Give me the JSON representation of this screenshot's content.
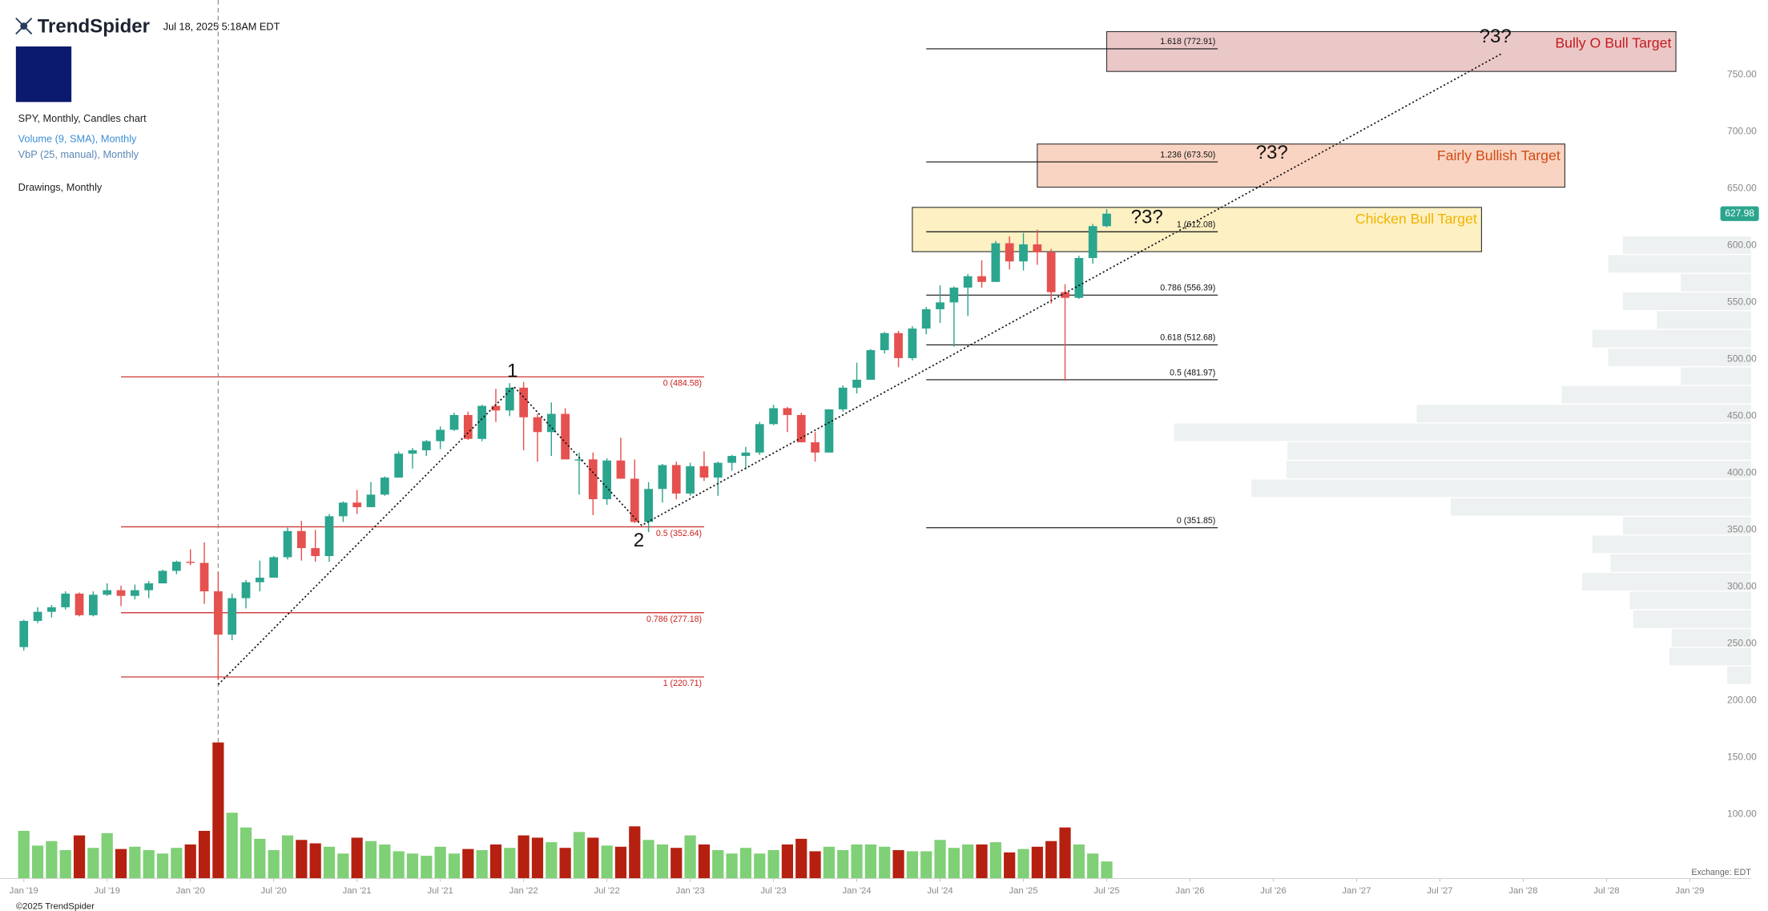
{
  "header": {
    "brand": "TrendSpider",
    "timestamp": "Jul 18, 2025 5:18AM EDT"
  },
  "legend": {
    "main": "SPY, Monthly, Candles chart",
    "volume": "Volume (9, SMA), Monthly",
    "vbp": "VbP (25, manual), Monthly",
    "drawings": "Drawings, Monthly"
  },
  "footer": {
    "copyright": "©2025 TrendSpider",
    "exchange": "Exchange: EDT"
  },
  "chart_data": {
    "type": "candlestick",
    "colors": {
      "up": "#2ba58e",
      "down": "#e5514f",
      "volume_up": "#7fd076",
      "volume_down": "#b52010",
      "vbp": "#eef1f2"
    },
    "xlim": [
      -1.714,
      121.55
    ],
    "xticks": [
      {
        "value": 0,
        "label": "Jan '19"
      },
      {
        "value": 6,
        "label": "Jul '19"
      },
      {
        "value": 12,
        "label": "Jan '20"
      },
      {
        "value": 18,
        "label": "Jul '20"
      },
      {
        "value": 24,
        "label": "Jan '21"
      },
      {
        "value": 30,
        "label": "Jul '21"
      },
      {
        "value": 36,
        "label": "Jan '22"
      },
      {
        "value": 42,
        "label": "Jul '22"
      },
      {
        "value": 48,
        "label": "Jan '23"
      },
      {
        "value": 54,
        "label": "Jul '23"
      },
      {
        "value": 60,
        "label": "Jan '24"
      },
      {
        "value": 66,
        "label": "Jul '24"
      },
      {
        "value": 72,
        "label": "Jan '25"
      },
      {
        "value": 78,
        "label": "Jul '25"
      },
      {
        "value": 84,
        "label": "Jan '26"
      },
      {
        "value": 90,
        "label": "Jul '26"
      },
      {
        "value": 96,
        "label": "Jan '27"
      },
      {
        "value": 102,
        "label": "Jul '27"
      },
      {
        "value": 108,
        "label": "Jan '28"
      },
      {
        "value": 114,
        "label": "Jul '28"
      },
      {
        "value": 120,
        "label": "Jan '29"
      }
    ],
    "ylim": [
      43.6,
      815.8
    ],
    "yticks": [
      {
        "value": 750,
        "label": "750.00"
      },
      {
        "value": 700,
        "label": "700.00"
      },
      {
        "value": 650,
        "label": "650.00"
      },
      {
        "value": 600,
        "label": "600.00"
      },
      {
        "value": 550,
        "label": "550.00"
      },
      {
        "value": 500,
        "label": "500.00"
      },
      {
        "value": 450,
        "label": "450.00"
      },
      {
        "value": 400,
        "label": "400.00"
      },
      {
        "value": 350,
        "label": "350.00"
      },
      {
        "value": 300,
        "label": "300.00"
      },
      {
        "value": 250,
        "label": "250.00"
      },
      {
        "value": 200,
        "label": "200.00"
      },
      {
        "value": 150,
        "label": "150.00"
      },
      {
        "value": 100,
        "label": "100.00"
      }
    ],
    "last_price": 627.98,
    "x": [
      0,
      1,
      2,
      3,
      4,
      5,
      6,
      7,
      8,
      9,
      10,
      11,
      12,
      13,
      14,
      15,
      16,
      17,
      18,
      19,
      20,
      21,
      22,
      23,
      24,
      25,
      26,
      27,
      28,
      29,
      30,
      31,
      32,
      33,
      34,
      35,
      36,
      37,
      38,
      39,
      40,
      41,
      42,
      43,
      44,
      45,
      46,
      47,
      48,
      49,
      50,
      51,
      52,
      53,
      54,
      55,
      56,
      57,
      58,
      59,
      60,
      61,
      62,
      63,
      64,
      65,
      66,
      67,
      68,
      69,
      70,
      71,
      72,
      73,
      74,
      75,
      76,
      77,
      78
    ],
    "open": [
      247,
      270,
      278,
      282,
      294,
      275,
      293,
      297,
      292,
      297,
      303,
      314,
      322,
      321,
      296,
      258,
      290,
      304,
      308,
      326,
      349,
      334,
      327,
      362,
      374,
      370,
      381,
      396,
      417,
      420,
      428,
      438,
      451,
      430,
      459,
      455,
      475,
      449,
      436,
      452,
      412,
      412,
      377,
      411,
      395,
      357,
      386,
      407,
      382,
      406,
      396,
      409,
      415,
      418,
      443,
      457,
      451,
      427,
      418,
      456,
      475,
      482,
      508,
      523,
      501,
      527,
      544,
      550,
      563,
      573,
      568,
      602,
      586,
      601,
      594,
      559,
      554,
      589,
      617
    ],
    "high": [
      271,
      282,
      284,
      296,
      295,
      296,
      303,
      301,
      302,
      305,
      315,
      323,
      333,
      339,
      313,
      294,
      306,
      323,
      327,
      352,
      358,
      350,
      364,
      375,
      385,
      392,
      397,
      419,
      422,
      429,
      441,
      453,
      454,
      460,
      474,
      479,
      480,
      452,
      462,
      457,
      418,
      418,
      413,
      431,
      412,
      392,
      408,
      410,
      409,
      419,
      410,
      416,
      423,
      445,
      460,
      458,
      453,
      436,
      456,
      477,
      497,
      509,
      524,
      525,
      529,
      546,
      565,
      564,
      575,
      587,
      604,
      608,
      611,
      614,
      597,
      566,
      591,
      619,
      632
    ],
    "low": [
      244,
      268,
      273,
      280,
      274,
      274,
      292,
      283,
      289,
      290,
      303,
      311,
      319,
      285,
      218,
      253,
      281,
      296,
      309,
      324,
      323,
      322,
      322,
      357,
      364,
      370,
      380,
      398,
      404,
      415,
      421,
      437,
      429,
      428,
      445,
      450,
      420,
      410,
      415,
      412,
      381,
      363,
      372,
      395,
      356,
      348,
      374,
      377,
      380,
      393,
      380,
      402,
      403,
      416,
      442,
      436,
      427,
      410,
      418,
      454,
      470,
      482,
      505,
      493,
      499,
      522,
      532,
      511,
      538,
      563,
      568,
      579,
      578,
      583,
      549,
      481,
      553,
      584,
      616
    ],
    "close": [
      270,
      278,
      282,
      294,
      275,
      293,
      297,
      292,
      297,
      303,
      314,
      322,
      321,
      296,
      258,
      290,
      304,
      308,
      326,
      349,
      334,
      327,
      362,
      374,
      370,
      381,
      396,
      417,
      420,
      428,
      438,
      451,
      430,
      459,
      455,
      475,
      449,
      436,
      452,
      412,
      412,
      377,
      411,
      395,
      357,
      386,
      407,
      382,
      406,
      396,
      409,
      415,
      418,
      443,
      457,
      451,
      427,
      418,
      456,
      475,
      482,
      508,
      523,
      501,
      527,
      544,
      550,
      563,
      573,
      568,
      602,
      586,
      601,
      594,
      559,
      554,
      589,
      617,
      628
    ],
    "volume_lim": [
      0,
      140
    ],
    "volume": [
      42,
      29,
      33,
      25,
      38,
      27,
      40,
      26,
      28,
      25,
      22,
      27,
      30,
      42,
      120,
      58,
      45,
      35,
      25,
      38,
      34,
      31,
      28,
      22,
      36,
      33,
      30,
      24,
      22,
      20,
      28,
      22,
      26,
      25,
      30,
      27,
      38,
      36,
      32,
      27,
      41,
      36,
      29,
      28,
      46,
      34,
      30,
      27,
      38,
      30,
      25,
      22,
      27,
      22,
      25,
      30,
      35,
      24,
      28,
      25,
      30,
      30,
      28,
      25,
      24,
      24,
      34,
      27,
      30,
      30,
      32,
      23,
      26,
      28,
      33,
      45,
      30,
      22,
      15
    ],
    "vbp": {
      "low": 214,
      "high": 608.5,
      "volumes": [
        21,
        72,
        70,
        104,
        107,
        149,
        124,
        140,
        113,
        265,
        441,
        410,
        409,
        509,
        295,
        167,
        62,
        126,
        140,
        83,
        113,
        62,
        126,
        113
      ]
    },
    "vertical_line": 14,
    "fib_left": {
      "x": [
        7,
        49
      ],
      "levels": [
        {
          "value": 484.58,
          "label": "0 (484.58)"
        },
        {
          "value": 352.64,
          "label": "0.5 (352.64)"
        },
        {
          "value": 277.18,
          "label": "0.786 (277.18)"
        },
        {
          "value": 220.71,
          "label": "1 (220.71)"
        }
      ]
    },
    "fib_right": {
      "x": [
        65,
        86
      ],
      "levels": [
        {
          "value": 772.91,
          "label": "1.618 (772.91)"
        },
        {
          "value": 673.5,
          "label": "1.236 (673.50)"
        },
        {
          "value": 612.08,
          "label": "1 (612.08)"
        },
        {
          "value": 556.39,
          "label": "0.786 (556.39)"
        },
        {
          "value": 512.68,
          "label": "0.618 (512.68)"
        },
        {
          "value": 481.97,
          "label": "0.5 (481.97)"
        },
        {
          "value": 351.85,
          "label": "0 (351.85)"
        }
      ]
    },
    "targets": [
      {
        "label": "Bully O Bull Target",
        "x": [
          78,
          119
        ],
        "y": [
          753,
          788
        ],
        "fill": "#ebc8c8",
        "color": "#c41a1d"
      },
      {
        "label": "Fairly Bullish Target",
        "x": [
          73,
          111
        ],
        "y": [
          651.3,
          689.2
        ],
        "fill": "#f9d4c3",
        "color": "#d24b14"
      },
      {
        "label": "Chicken Bull Target",
        "x": [
          64,
          105
        ],
        "y": [
          594.6,
          633.5
        ],
        "fill": "#fdf0c3",
        "color": "#f0b400"
      }
    ],
    "zigzag": {
      "x": [
        14,
        35.3,
        44.5,
        106.5
      ],
      "y": [
        214,
        476,
        354,
        769
      ]
    },
    "annotations": [
      {
        "text": "1",
        "x": 35.2,
        "y": 489
      },
      {
        "text": "2",
        "x": 44.3,
        "y": 340
      },
      {
        "text": "?3?",
        "x": 106,
        "y": 783
      },
      {
        "text": "?3?",
        "x": 89.9,
        "y": 681
      },
      {
        "text": "?3?",
        "x": 80.9,
        "y": 624
      }
    ]
  }
}
